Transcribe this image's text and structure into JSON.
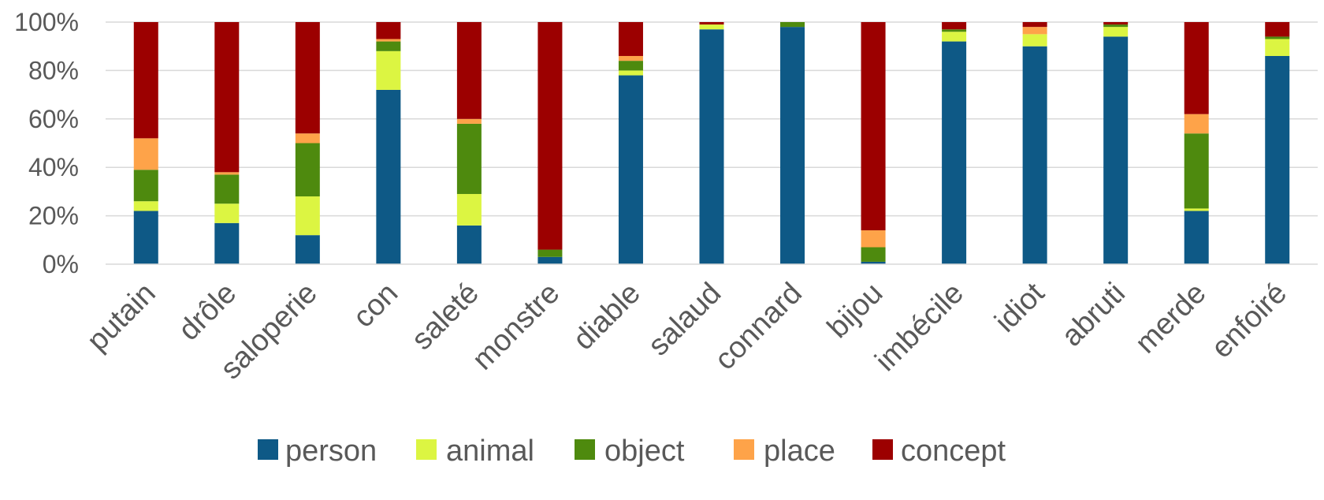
{
  "chart_data": {
    "type": "bar",
    "stacked": true,
    "normalized": true,
    "categories": [
      "putain",
      "drôle",
      "saloperie",
      "con",
      "saleté",
      "monstre",
      "diable",
      "salaud",
      "connard",
      "bijou",
      "imbécile",
      "idiot",
      "abruti",
      "merde",
      "enfoiré"
    ],
    "series": [
      {
        "name": "person",
        "color": "#0e5986",
        "values": [
          22,
          17,
          12,
          72,
          16,
          3,
          78,
          97,
          98,
          1,
          92,
          90,
          94,
          22,
          86
        ]
      },
      {
        "name": "animal",
        "color": "#dcf542",
        "values": [
          4,
          8,
          16,
          16,
          13,
          0,
          2,
          2,
          0,
          0,
          4,
          5,
          4,
          1,
          7
        ]
      },
      {
        "name": "object",
        "color": "#4e8a0e",
        "values": [
          13,
          12,
          22,
          4,
          29,
          3,
          4,
          0,
          2,
          6,
          1,
          0,
          1,
          31,
          1
        ]
      },
      {
        "name": "place",
        "color": "#fea349",
        "values": [
          13,
          1,
          4,
          1,
          2,
          0,
          2,
          0,
          0,
          7,
          0,
          3,
          0,
          8,
          0
        ]
      },
      {
        "name": "concept",
        "color": "#9c0000",
        "values": [
          48,
          62,
          46,
          7,
          40,
          94,
          14,
          1,
          0,
          86,
          3,
          2,
          1,
          38,
          6
        ]
      }
    ],
    "yticks": [
      "0%",
      "20%",
      "40%",
      "60%",
      "80%",
      "100%"
    ],
    "ylim": [
      0,
      100
    ],
    "grid": true,
    "legend_position": "bottom",
    "title": "",
    "xlabel": "",
    "ylabel": ""
  }
}
